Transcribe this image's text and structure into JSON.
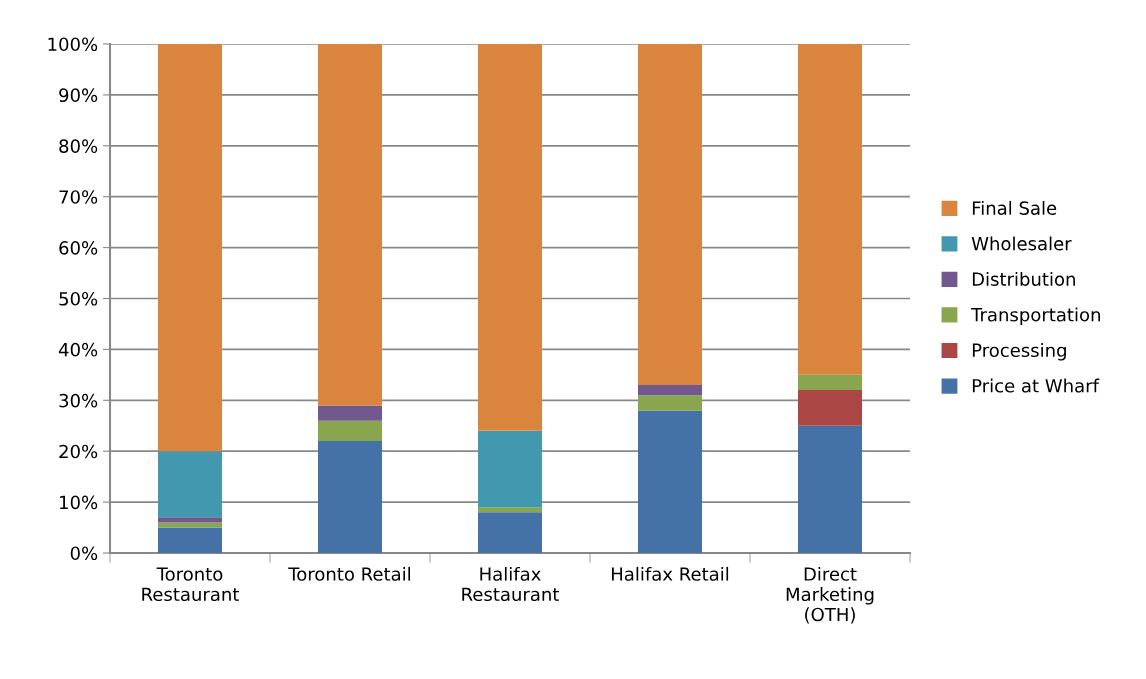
{
  "chart_data": {
    "type": "bar",
    "stacked": true,
    "categories": [
      "Toronto\nRestaurant",
      "Toronto Retail",
      "Halifax\nRestaurant",
      "Halifax Retail",
      "Direct\nMarketing\n(OTH)"
    ],
    "series": [
      {
        "name": "Price at Wharf",
        "color": "#4472a8",
        "values": [
          5,
          22,
          8,
          28,
          25
        ]
      },
      {
        "name": "Processing",
        "color": "#aa4644",
        "values": [
          0,
          0,
          0,
          0,
          7
        ]
      },
      {
        "name": "Transportation",
        "color": "#89a54e",
        "values": [
          1,
          4,
          1,
          3,
          3
        ]
      },
      {
        "name": "Distribution",
        "color": "#71588f",
        "values": [
          1,
          3,
          0,
          2,
          0
        ]
      },
      {
        "name": "Wholesaler",
        "color": "#4198af",
        "values": [
          13,
          0,
          15,
          0,
          0
        ]
      },
      {
        "name": "Final Sale",
        "color": "#db843d",
        "values": [
          80,
          71,
          76,
          67,
          65
        ]
      }
    ],
    "ylim": [
      0,
      100
    ],
    "yticks": [
      {
        "value": 0,
        "label": "0%"
      },
      {
        "value": 10,
        "label": "10%"
      },
      {
        "value": 20,
        "label": "20%"
      },
      {
        "value": 30,
        "label": "30%"
      },
      {
        "value": 40,
        "label": "40%"
      },
      {
        "value": 50,
        "label": "50%"
      },
      {
        "value": 60,
        "label": "60%"
      },
      {
        "value": 70,
        "label": "70%"
      },
      {
        "value": 80,
        "label": "80%"
      },
      {
        "value": 90,
        "label": "90%"
      },
      {
        "value": 100,
        "label": "100%"
      }
    ],
    "grid": "y",
    "legend": "right"
  }
}
